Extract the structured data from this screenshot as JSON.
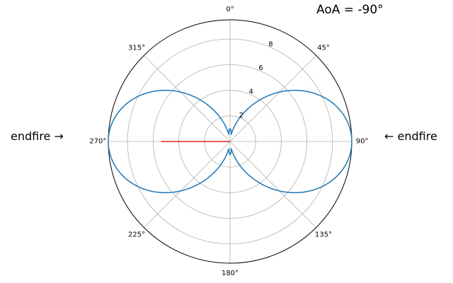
{
  "chart_data": {
    "type": "polar-line",
    "title": "AoA = -90°",
    "left_annotation": "endfire →",
    "right_annotation": "← endfire",
    "theta_zero": "top",
    "theta_direction": "clockwise",
    "theta_ticks": [
      "0°",
      "45°",
      "90°",
      "135°",
      "180°",
      "225°",
      "270°",
      "315°"
    ],
    "theta_tick_degrees": [
      0,
      45,
      90,
      135,
      180,
      225,
      270,
      315
    ],
    "r_ticks": [
      "2",
      "4",
      "6",
      "8"
    ],
    "r_tick_values": [
      2,
      4,
      6,
      8
    ],
    "rlim": [
      0,
      9.5
    ],
    "grid": true,
    "series": [
      {
        "color": "#1f77b4",
        "pattern": {
          "main_lobe_peak": 9.5,
          "main_lobe_directions_deg": [
            90,
            270
          ],
          "side_lobe_peak": 1.0,
          "side_lobe_directions_deg": [
            0,
            180
          ]
        }
      }
    ],
    "direction_marker": {
      "angle_deg": 270,
      "length": 5.4,
      "color": "#d62728"
    }
  }
}
